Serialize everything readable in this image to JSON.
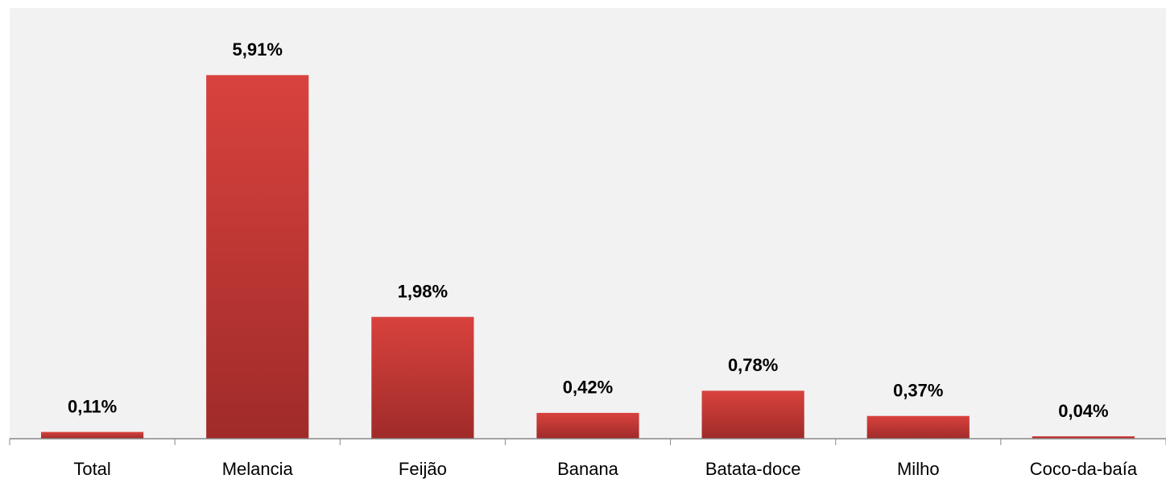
{
  "chart_data": {
    "type": "bar",
    "categories": [
      "Total",
      "Melancia",
      "Feijão",
      "Banana",
      "Batata-doce",
      "Milho",
      "Coco-da-baía"
    ],
    "values": [
      0.11,
      5.91,
      1.98,
      0.42,
      0.78,
      0.37,
      0.04
    ],
    "value_labels": [
      "0,11%",
      "5,91%",
      "1,98%",
      "0,42%",
      "0,78%",
      "0,37%",
      "0,04%"
    ],
    "color": "#c9363a",
    "ylim": [
      0,
      7
    ]
  }
}
